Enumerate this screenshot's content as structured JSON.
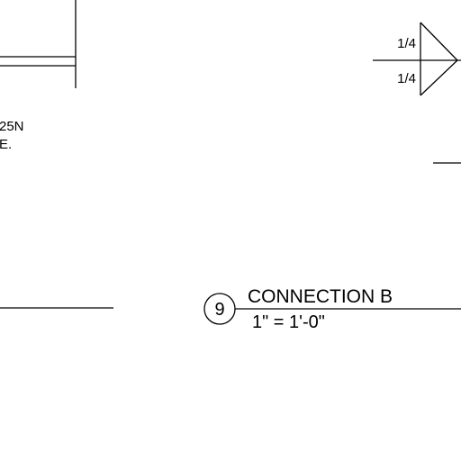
{
  "drawing": {
    "note_line1": "25N",
    "note_line2": "E.",
    "weld_symbol": {
      "arrow_side_size": "1/4",
      "other_side_size": "1/4"
    },
    "detail_title": {
      "number": "9",
      "title": "CONNECTION B",
      "scale": "1\" = 1'-0\""
    }
  },
  "colors": {
    "line": "#000000",
    "background": "#ffffff"
  }
}
